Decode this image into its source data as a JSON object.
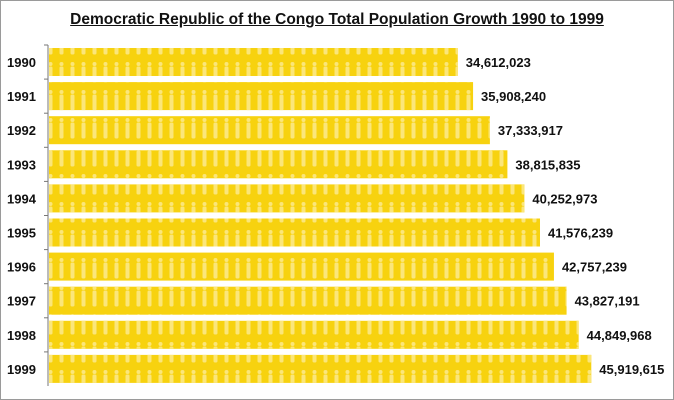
{
  "chart_data": {
    "type": "bar",
    "orientation": "horizontal",
    "title": "Democratic Republic of the Congo Total Population Growth 1990 to 1999",
    "categories": [
      "1990",
      "1991",
      "1992",
      "1993",
      "1994",
      "1995",
      "1996",
      "1997",
      "1998",
      "1999"
    ],
    "values": [
      34612023,
      35908240,
      37333917,
      38815835,
      40252973,
      41576239,
      42757239,
      43827191,
      44849968,
      45919615
    ],
    "data_labels": [
      "34,612,023",
      "35,908,240",
      "37,333,917",
      "38,815,835",
      "40,252,973",
      "41,576,239",
      "42,757,239",
      "43,827,191",
      "44,849,968",
      "45,919,615"
    ],
    "xlim": [
      0,
      52500000
    ],
    "bar_color": "#f7d20f",
    "pattern": "people-silhouettes",
    "grid": false,
    "legend": "none"
  }
}
